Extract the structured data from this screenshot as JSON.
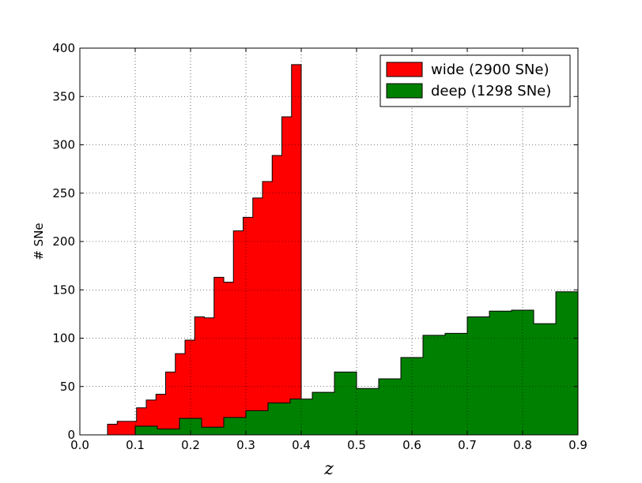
{
  "chart_data": {
    "type": "histogram",
    "xlabel": "z",
    "ylabel": "# SNe",
    "series": [
      {
        "name": "wide (2900 SNe)",
        "color": "#ff0000",
        "bins": [
          0.05,
          0.0675,
          0.085,
          0.1025,
          0.12,
          0.1375,
          0.155,
          0.1725,
          0.19,
          0.2075,
          0.225,
          0.2425,
          0.26,
          0.2775,
          0.295,
          0.3125,
          0.33,
          0.3475,
          0.365,
          0.3825,
          0.4
        ],
        "values": [
          11,
          14,
          14,
          28,
          36,
          42,
          65,
          84,
          98,
          122,
          121,
          163,
          158,
          211,
          225,
          245,
          262,
          289,
          329,
          383
        ]
      },
      {
        "name": "deep (1298 SNe)",
        "color": "#008000",
        "bins": [
          0.1,
          0.14,
          0.18,
          0.22,
          0.26,
          0.3,
          0.34,
          0.38,
          0.42,
          0.46,
          0.5,
          0.54,
          0.58,
          0.62,
          0.66,
          0.7,
          0.74,
          0.78,
          0.82,
          0.86,
          0.9
        ],
        "values": [
          9,
          6,
          17,
          8,
          18,
          25,
          33,
          37,
          44,
          65,
          48,
          58,
          80,
          103,
          105,
          122,
          128,
          129,
          115,
          148
        ]
      }
    ],
    "xlim": [
      0,
      0.9
    ],
    "xticks": [
      {
        "value": 0,
        "label": "0.0"
      },
      {
        "value": 0.1,
        "label": "0.1"
      },
      {
        "value": 0.2,
        "label": "0.2"
      },
      {
        "value": 0.3,
        "label": "0.3"
      },
      {
        "value": 0.4,
        "label": "0.4"
      },
      {
        "value": 0.5,
        "label": "0.5"
      },
      {
        "value": 0.6,
        "label": "0.6"
      },
      {
        "value": 0.7,
        "label": "0.7"
      },
      {
        "value": 0.8,
        "label": "0.8"
      },
      {
        "value": 0.9,
        "label": "0.9"
      }
    ],
    "ylim": [
      0,
      400
    ],
    "yticks": [
      0,
      50,
      100,
      150,
      200,
      250,
      300,
      350,
      400
    ],
    "grid": true,
    "legend": "upper right"
  }
}
